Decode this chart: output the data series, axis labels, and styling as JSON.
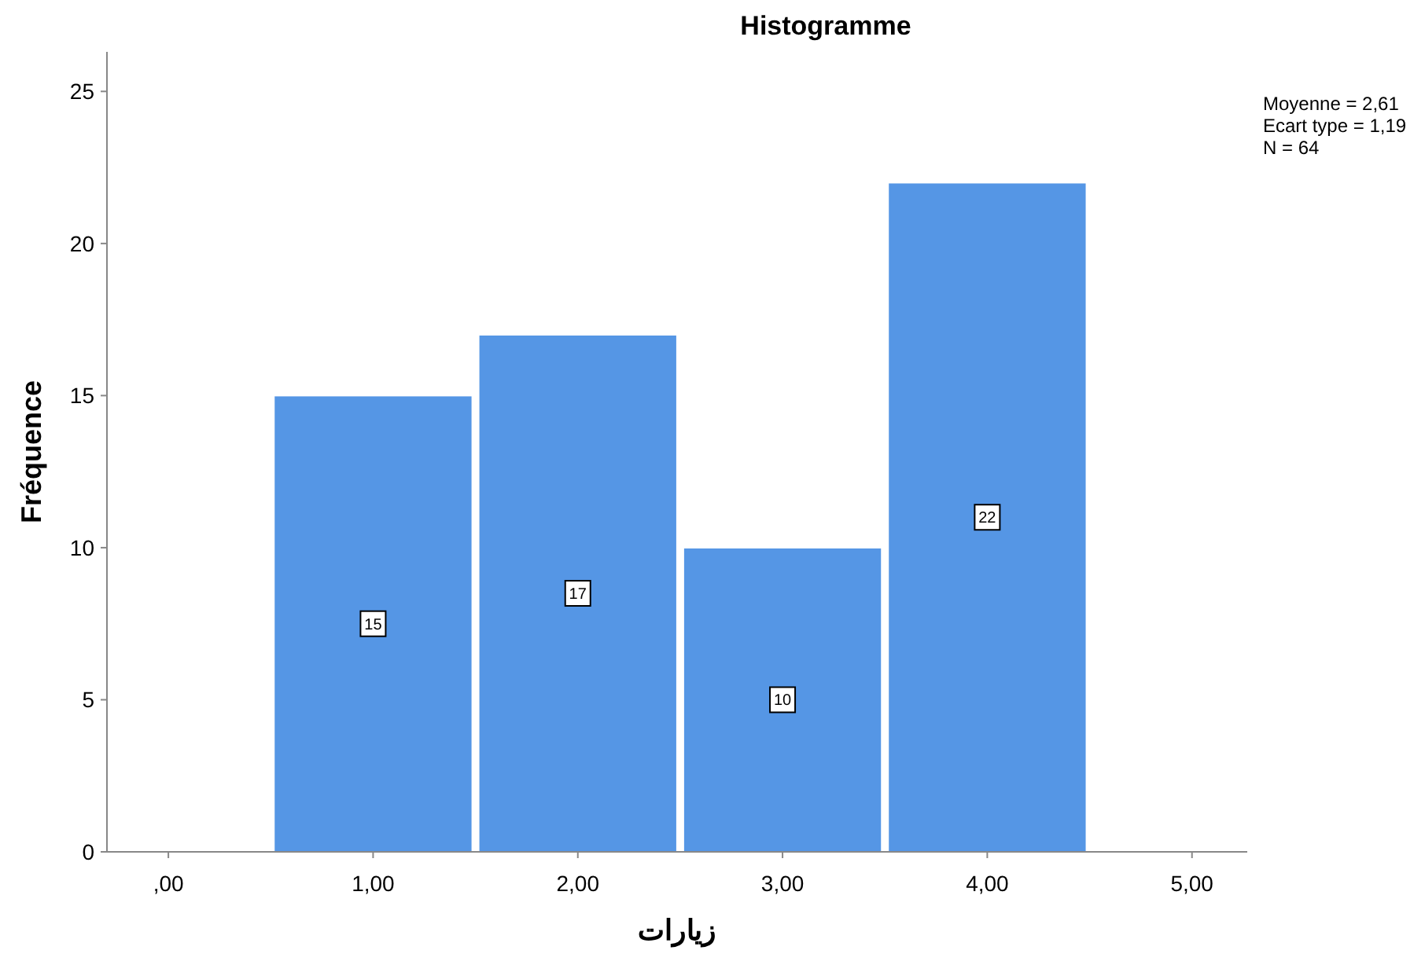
{
  "chart_data": {
    "type": "histogram",
    "title": "Histogramme",
    "xlabel": "زيارات",
    "ylabel": "Fréquence",
    "bins": [
      0.5,
      1.5,
      2.5,
      3.5,
      4.5
    ],
    "values": [
      15,
      17,
      10,
      22
    ],
    "color": "#5596e5",
    "data_labels": true,
    "xlim": [
      -0.3,
      5.27
    ],
    "ylim": [
      0,
      26.3
    ],
    "xticks": [
      {
        "value": 0,
        "label": ",00"
      },
      {
        "value": 1,
        "label": "1,00"
      },
      {
        "value": 2,
        "label": "2,00"
      },
      {
        "value": 3,
        "label": "3,00"
      },
      {
        "value": 4,
        "label": "4,00"
      },
      {
        "value": 5,
        "label": "5,00"
      }
    ],
    "yticks": [
      0,
      5,
      10,
      15,
      20,
      25
    ],
    "annotations": [
      "Moyenne = 2,61",
      "Ecart type = 1,19",
      "N = 64"
    ]
  }
}
